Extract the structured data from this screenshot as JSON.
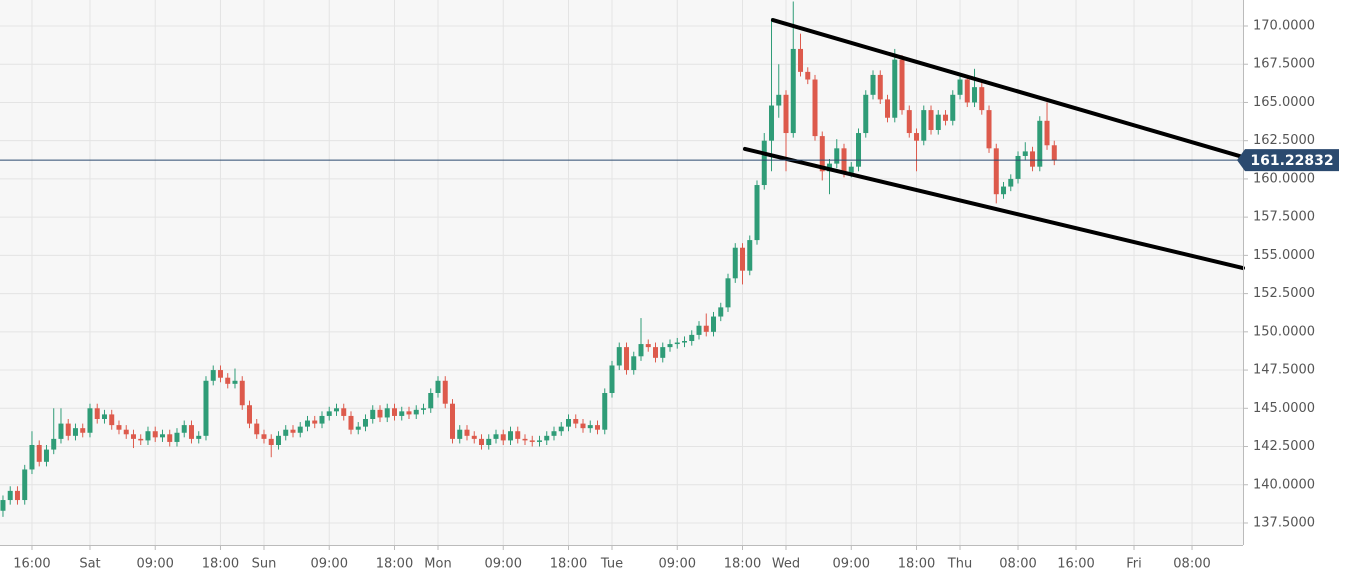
{
  "chart_data": {
    "type": "candlestick",
    "x": [
      -12,
      -11,
      -10,
      -9,
      -8,
      -7,
      -6,
      -5,
      -4,
      -3,
      -2,
      -1,
      0,
      1,
      2,
      3,
      4,
      5,
      6,
      7,
      8,
      9,
      10,
      11,
      12,
      13,
      14,
      15,
      16,
      17,
      18,
      19,
      20,
      21,
      22,
      23,
      24,
      25,
      26,
      27,
      28,
      29,
      30,
      31,
      32,
      33,
      34,
      35,
      36,
      37,
      38,
      39,
      40,
      41,
      42,
      43,
      44,
      45,
      46,
      47,
      48,
      49,
      50,
      51,
      52,
      53,
      54,
      55,
      56,
      57,
      58,
      59,
      60,
      61,
      62,
      63,
      64,
      65,
      66,
      67,
      68,
      69,
      70,
      71,
      72,
      73,
      74,
      75,
      76,
      77,
      78,
      79,
      80,
      81,
      82,
      83,
      84,
      85,
      86,
      87,
      88,
      89,
      90,
      91,
      92,
      93,
      94,
      95,
      96,
      97,
      98,
      99,
      100,
      101,
      102,
      103,
      104,
      105,
      106,
      107,
      108,
      109,
      110,
      111,
      112,
      113,
      114,
      115,
      116,
      117,
      118,
      119,
      120,
      121,
      122,
      123,
      124,
      125,
      126,
      127,
      128,
      129,
      130,
      131,
      132,
      133
    ],
    "open": [
      138.3,
      139.0,
      139.6,
      139.0,
      141.0,
      142.6,
      141.5,
      142.3,
      143.0,
      144.0,
      143.2,
      143.7,
      143.4,
      145.0,
      144.3,
      144.6,
      143.9,
      143.6,
      143.3,
      143.0,
      142.9,
      143.5,
      143.1,
      143.3,
      142.8,
      143.4,
      143.9,
      143.0,
      143.2,
      146.8,
      147.5,
      147.0,
      146.6,
      146.8,
      145.2,
      144.0,
      143.3,
      143.0,
      142.6,
      143.2,
      143.6,
      143.4,
      143.8,
      144.2,
      144.0,
      144.5,
      144.8,
      145.0,
      144.5,
      143.6,
      143.8,
      144.3,
      144.9,
      144.4,
      145.0,
      144.5,
      144.8,
      144.6,
      144.9,
      145.0,
      146.0,
      146.8,
      145.3,
      143.0,
      143.6,
      143.2,
      143.0,
      142.6,
      143.0,
      143.3,
      142.9,
      143.5,
      143.0,
      142.9,
      142.8,
      142.9,
      143.2,
      143.5,
      143.8,
      144.3,
      144.0,
      143.7,
      143.9,
      143.6,
      146.0,
      147.8,
      149.0,
      147.5,
      148.4,
      149.2,
      149.0,
      148.3,
      149.0,
      149.2,
      149.3,
      149.4,
      149.8,
      150.4,
      150.0,
      151.0,
      151.6,
      153.5,
      155.5,
      154.0,
      156.0,
      159.6,
      162.5,
      164.8,
      165.5,
      163.0,
      168.5,
      167.0,
      166.5,
      162.8,
      160.5,
      161.0,
      162.0,
      160.4,
      160.8,
      163.0,
      165.5,
      166.8,
      165.2,
      164.0,
      167.8,
      164.5,
      163.0,
      162.5,
      164.5,
      163.2,
      164.2,
      163.8,
      165.5,
      166.5,
      165.0,
      166.0,
      164.5,
      162.0,
      159.0,
      159.5,
      160.0,
      161.5,
      161.8,
      160.8,
      163.8,
      162.2
    ],
    "high": [
      139.3,
      139.9,
      139.9,
      141.3,
      143.5,
      142.9,
      142.6,
      145.0,
      145.0,
      144.3,
      144.0,
      144.0,
      145.3,
      145.3,
      144.9,
      144.9,
      144.2,
      143.9,
      143.6,
      143.3,
      143.8,
      143.8,
      143.6,
      143.6,
      143.7,
      144.2,
      144.2,
      143.5,
      147.1,
      147.8,
      147.8,
      147.3,
      147.6,
      147.1,
      145.5,
      144.3,
      143.6,
      143.3,
      143.5,
      143.9,
      143.9,
      144.1,
      144.5,
      144.5,
      144.8,
      145.1,
      145.3,
      145.3,
      144.8,
      144.1,
      144.6,
      145.2,
      145.2,
      145.3,
      145.3,
      145.1,
      145.1,
      145.2,
      145.3,
      146.3,
      147.1,
      147.1,
      145.6,
      143.9,
      143.9,
      143.5,
      143.3,
      143.3,
      143.6,
      143.6,
      143.8,
      143.8,
      143.3,
      143.2,
      143.2,
      143.5,
      143.8,
      144.1,
      144.6,
      144.6,
      144.3,
      144.2,
      144.2,
      146.3,
      148.1,
      149.3,
      149.3,
      148.7,
      150.9,
      149.5,
      149.3,
      149.3,
      149.5,
      149.6,
      149.7,
      150.1,
      150.7,
      151.2,
      151.3,
      151.9,
      153.8,
      155.8,
      155.8,
      156.3,
      159.9,
      163.0,
      170.5,
      167.5,
      165.8,
      171.6,
      169.5,
      167.3,
      166.8,
      163.1,
      161.3,
      162.6,
      162.3,
      161.1,
      163.3,
      165.8,
      167.1,
      167.1,
      165.5,
      168.5,
      168.1,
      164.8,
      163.3,
      164.8,
      164.8,
      164.5,
      164.5,
      165.8,
      166.8,
      166.8,
      167.2,
      166.3,
      164.8,
      162.3,
      159.8,
      160.3,
      161.8,
      162.4,
      162.1,
      164.1,
      165.0,
      162.5
    ],
    "low": [
      137.9,
      138.7,
      138.7,
      138.7,
      140.7,
      141.2,
      141.2,
      142.0,
      142.7,
      142.9,
      142.9,
      143.1,
      143.1,
      144.0,
      144.0,
      143.6,
      143.3,
      143.0,
      142.4,
      142.6,
      142.6,
      142.8,
      142.8,
      142.5,
      142.5,
      143.1,
      142.7,
      142.7,
      142.9,
      146.5,
      146.7,
      146.3,
      146.3,
      144.9,
      143.7,
      143.0,
      142.7,
      141.8,
      142.3,
      142.9,
      143.1,
      143.1,
      143.5,
      143.7,
      143.7,
      144.2,
      144.5,
      144.2,
      143.3,
      143.3,
      143.5,
      144.0,
      144.1,
      144.1,
      144.2,
      144.2,
      144.3,
      144.3,
      144.6,
      144.7,
      145.7,
      145.0,
      142.7,
      142.7,
      142.9,
      142.7,
      142.3,
      142.3,
      142.7,
      142.6,
      142.6,
      142.7,
      142.6,
      142.5,
      142.5,
      142.6,
      142.9,
      143.2,
      143.5,
      143.7,
      143.4,
      143.4,
      143.3,
      143.3,
      145.7,
      147.5,
      147.2,
      147.2,
      148.1,
      148.7,
      148.0,
      148.0,
      148.7,
      148.9,
      149.0,
      149.1,
      149.5,
      149.7,
      149.7,
      150.7,
      151.3,
      153.2,
      153.1,
      153.7,
      155.7,
      159.3,
      160.5,
      164.0,
      160.5,
      162.7,
      166.7,
      166.2,
      162.5,
      159.9,
      159.0,
      160.7,
      160.1,
      160.1,
      160.5,
      162.7,
      165.2,
      164.9,
      163.7,
      163.7,
      164.2,
      162.7,
      160.5,
      162.2,
      162.9,
      162.9,
      163.5,
      163.5,
      165.2,
      164.7,
      164.7,
      164.2,
      161.7,
      158.4,
      158.7,
      159.2,
      159.7,
      161.2,
      160.5,
      160.5,
      161.9,
      160.9
    ],
    "close": [
      139.0,
      139.6,
      139.0,
      141.0,
      142.6,
      141.5,
      142.3,
      143.0,
      144.0,
      143.2,
      143.7,
      143.4,
      145.0,
      144.3,
      144.6,
      143.9,
      143.6,
      143.3,
      143.0,
      142.9,
      143.5,
      143.1,
      143.3,
      142.8,
      143.4,
      143.9,
      143.0,
      143.2,
      146.8,
      147.5,
      147.0,
      146.6,
      146.8,
      145.2,
      144.0,
      143.3,
      143.0,
      142.6,
      143.2,
      143.6,
      143.4,
      143.8,
      144.2,
      144.0,
      144.5,
      144.8,
      145.0,
      144.5,
      143.6,
      143.8,
      144.3,
      144.9,
      144.4,
      145.0,
      144.5,
      144.8,
      144.6,
      144.9,
      145.0,
      146.0,
      146.8,
      145.3,
      143.0,
      143.6,
      143.2,
      143.0,
      142.6,
      143.0,
      143.3,
      142.9,
      143.5,
      143.0,
      142.9,
      142.8,
      142.9,
      143.2,
      143.5,
      143.8,
      144.3,
      144.0,
      143.7,
      143.9,
      143.6,
      146.0,
      147.8,
      149.0,
      147.5,
      148.4,
      149.2,
      149.0,
      148.3,
      149.0,
      149.2,
      149.3,
      149.4,
      149.8,
      150.4,
      150.0,
      151.0,
      151.6,
      153.5,
      155.5,
      154.0,
      156.0,
      159.6,
      162.5,
      164.8,
      165.5,
      163.0,
      168.5,
      167.0,
      166.5,
      162.8,
      160.5,
      161.0,
      162.0,
      160.4,
      160.8,
      163.0,
      165.5,
      166.8,
      165.2,
      164.0,
      167.8,
      164.5,
      163.0,
      162.5,
      164.5,
      163.2,
      164.2,
      163.8,
      165.5,
      166.5,
      165.0,
      166.0,
      164.5,
      162.0,
      159.0,
      159.5,
      160.0,
      161.5,
      161.8,
      160.8,
      163.8,
      162.2,
      161.2
    ],
    "up_color": "#2f9c77",
    "down_color": "#dd5a4c",
    "last_price": 161.22832,
    "last_price_color": "#2b4a6f",
    "trend_lines": [
      {
        "x": [
          94.2,
          159.03
        ],
        "y": [
          170.39,
          161.43
        ]
      },
      {
        "x": [
          90.34,
          159.03
        ],
        "y": [
          161.96,
          154.17
        ]
      }
    ],
    "trend_color": "#000000",
    "xlim": [
      -12.41,
      159.03
    ],
    "ylim": [
      136.06,
      171.7
    ],
    "grid": true,
    "xticks": [
      {
        "value": -8,
        "label": "16:00"
      },
      {
        "value": 0,
        "label": "Sat"
      },
      {
        "value": 9,
        "label": "09:00"
      },
      {
        "value": 18,
        "label": "18:00"
      },
      {
        "value": 24,
        "label": "Sun"
      },
      {
        "value": 33,
        "label": "09:00"
      },
      {
        "value": 42,
        "label": "18:00"
      },
      {
        "value": 48,
        "label": "Mon"
      },
      {
        "value": 57,
        "label": "09:00"
      },
      {
        "value": 66,
        "label": "18:00"
      },
      {
        "value": 72,
        "label": "Tue"
      },
      {
        "value": 81,
        "label": "09:00"
      },
      {
        "value": 90,
        "label": "18:00"
      },
      {
        "value": 96,
        "label": "Wed"
      },
      {
        "value": 105,
        "label": "09:00"
      },
      {
        "value": 114,
        "label": "18:00"
      },
      {
        "value": 120,
        "label": "Thu"
      },
      {
        "value": 128,
        "label": "08:00"
      },
      {
        "value": 136,
        "label": "16:00"
      },
      {
        "value": 144,
        "label": "Fri"
      },
      {
        "value": 152,
        "label": "08:00"
      }
    ],
    "yticks": [
      {
        "value": 137.5,
        "label": "137.5000"
      },
      {
        "value": 140,
        "label": "140.0000"
      },
      {
        "value": 142.5,
        "label": "142.5000"
      },
      {
        "value": 145,
        "label": "145.0000"
      },
      {
        "value": 147.5,
        "label": "147.5000"
      },
      {
        "value": 150,
        "label": "150.0000"
      },
      {
        "value": 152.5,
        "label": "152.5000"
      },
      {
        "value": 155,
        "label": "155.0000"
      },
      {
        "value": 157.5,
        "label": "157.5000"
      },
      {
        "value": 160,
        "label": "160.0000"
      },
      {
        "value": 162.5,
        "label": "162.5000"
      },
      {
        "value": 165,
        "label": "165.0000"
      },
      {
        "value": 167.5,
        "label": "167.5000"
      },
      {
        "value": 170,
        "label": "170.0000"
      }
    ]
  }
}
